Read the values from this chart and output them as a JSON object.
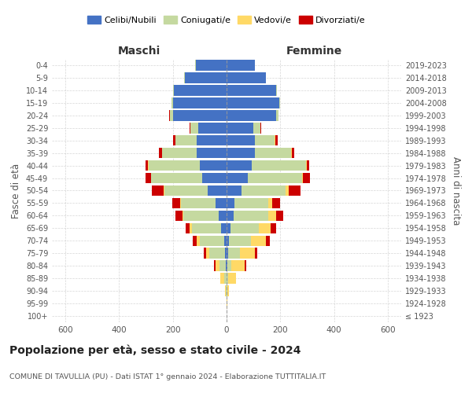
{
  "age_groups": [
    "100+",
    "95-99",
    "90-94",
    "85-89",
    "80-84",
    "75-79",
    "70-74",
    "65-69",
    "60-64",
    "55-59",
    "50-54",
    "45-49",
    "40-44",
    "35-39",
    "30-34",
    "25-29",
    "20-24",
    "15-19",
    "10-14",
    "5-9",
    "0-4"
  ],
  "birth_years": [
    "≤ 1923",
    "1924-1928",
    "1929-1933",
    "1934-1938",
    "1939-1943",
    "1944-1948",
    "1949-1953",
    "1954-1958",
    "1959-1963",
    "1964-1968",
    "1969-1973",
    "1974-1978",
    "1979-1983",
    "1984-1988",
    "1989-1993",
    "1994-1998",
    "1999-2003",
    "2004-2008",
    "2009-2013",
    "2014-2018",
    "2019-2023"
  ],
  "maschi": {
    "celibi": [
      0,
      0,
      0,
      1,
      2,
      5,
      10,
      20,
      30,
      40,
      70,
      90,
      100,
      110,
      110,
      105,
      200,
      200,
      195,
      155,
      115
    ],
    "coniugati": [
      0,
      0,
      2,
      8,
      25,
      60,
      90,
      110,
      130,
      130,
      160,
      190,
      190,
      130,
      80,
      30,
      10,
      5,
      3,
      2,
      2
    ],
    "vedovi": [
      0,
      1,
      5,
      15,
      15,
      10,
      10,
      8,
      5,
      2,
      3,
      2,
      2,
      1,
      1,
      1,
      1,
      0,
      0,
      0,
      0
    ],
    "divorziati": [
      0,
      0,
      0,
      0,
      5,
      10,
      15,
      15,
      25,
      30,
      45,
      20,
      10,
      10,
      8,
      3,
      2,
      0,
      0,
      0,
      0
    ]
  },
  "femmine": {
    "nubili": [
      0,
      0,
      0,
      0,
      2,
      5,
      10,
      15,
      25,
      30,
      55,
      80,
      95,
      105,
      105,
      100,
      185,
      195,
      185,
      145,
      105
    ],
    "coniugate": [
      0,
      0,
      2,
      5,
      15,
      45,
      80,
      105,
      130,
      125,
      165,
      200,
      200,
      135,
      75,
      25,
      8,
      4,
      2,
      1,
      1
    ],
    "vedove": [
      0,
      2,
      8,
      30,
      50,
      55,
      55,
      45,
      30,
      15,
      10,
      5,
      3,
      2,
      1,
      1,
      0,
      0,
      0,
      0,
      0
    ],
    "divorziate": [
      0,
      0,
      0,
      0,
      5,
      10,
      15,
      20,
      25,
      30,
      45,
      25,
      10,
      10,
      8,
      2,
      1,
      0,
      0,
      0,
      0
    ]
  },
  "colors": {
    "celibi": "#4472c4",
    "coniugati": "#c5d9a0",
    "vedovi": "#ffd966",
    "divorziati": "#cc0000"
  },
  "xlim": 650,
  "title": "Popolazione per età, sesso e stato civile - 2024",
  "subtitle": "COMUNE DI TAVULLIA (PU) - Dati ISTAT 1° gennaio 2024 - Elaborazione TUTTITALIA.IT",
  "xlabel_left": "Maschi",
  "xlabel_right": "Femmine",
  "ylabel_left": "Fasce di età",
  "ylabel_right": "Anni di nascita",
  "bg_color": "#ffffff",
  "grid_color": "#cccccc"
}
